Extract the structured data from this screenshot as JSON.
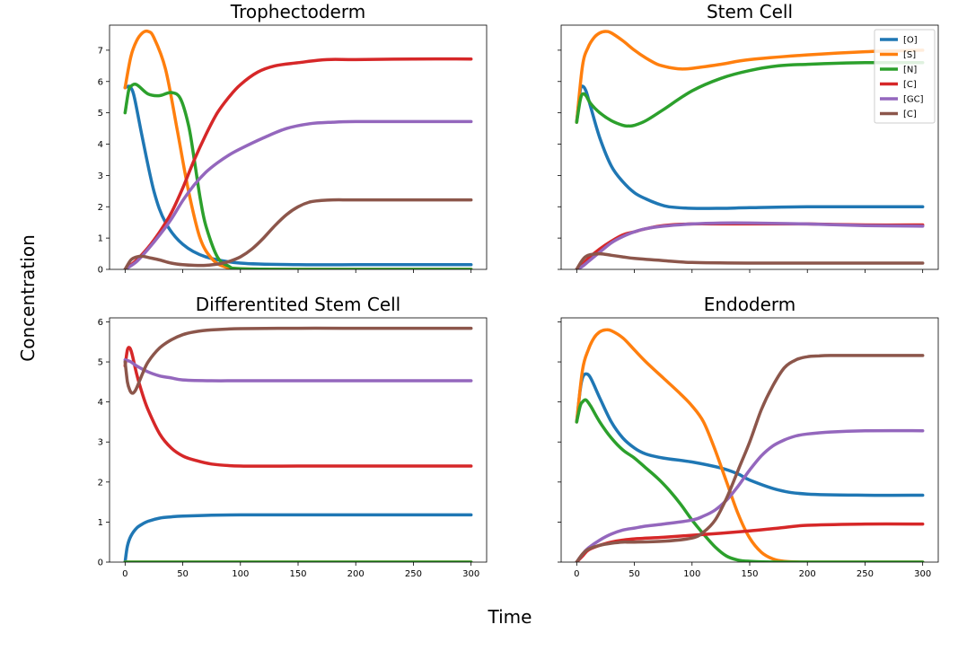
{
  "figure": {
    "xlabel": "Time",
    "ylabel": "Concentration"
  },
  "colors": [
    "#1f77b4",
    "#ff7f0e",
    "#2ca02c",
    "#d62728",
    "#9467bd",
    "#8c564b"
  ],
  "legend": {
    "location": "upper right of Stem Cell panel",
    "entries": [
      "[O]",
      "[S]",
      "[N]",
      "[C]",
      "[GC]",
      "[C]"
    ]
  },
  "chart_data": [
    {
      "type": "line",
      "title": "Trophectoderm",
      "xlim": [
        0,
        300
      ],
      "ylim": [
        0,
        7.8
      ],
      "xticks": [
        0,
        50,
        100,
        150,
        200,
        250,
        300
      ],
      "yticks": [
        0,
        1,
        2,
        3,
        4,
        5,
        6,
        7
      ],
      "grid": false,
      "series": [
        {
          "name": "[O]",
          "x": [
            0,
            3,
            5,
            8,
            15,
            25,
            35,
            50,
            70,
            100,
            150,
            200,
            300
          ],
          "y": [
            5.8,
            5.85,
            5.8,
            5.5,
            4.2,
            2.5,
            1.5,
            0.8,
            0.4,
            0.2,
            0.15,
            0.15,
            0.15
          ]
        },
        {
          "name": "[S]",
          "x": [
            0,
            5,
            10,
            15,
            20,
            25,
            35,
            45,
            55,
            65,
            75,
            85,
            100,
            150,
            300
          ],
          "y": [
            5.8,
            6.8,
            7.3,
            7.55,
            7.6,
            7.4,
            6.4,
            4.5,
            2.5,
            1.0,
            0.35,
            0.1,
            0.02,
            0,
            0
          ]
        },
        {
          "name": "[N]",
          "x": [
            0,
            3,
            5,
            10,
            20,
            30,
            40,
            48,
            55,
            60,
            65,
            70,
            80,
            90,
            100,
            150,
            300
          ],
          "y": [
            5.0,
            5.7,
            5.85,
            5.9,
            5.6,
            5.55,
            5.65,
            5.45,
            4.6,
            3.5,
            2.3,
            1.4,
            0.4,
            0.1,
            0.02,
            0,
            0
          ]
        },
        {
          "name": "[C]",
          "x": [
            0,
            10,
            20,
            30,
            40,
            50,
            60,
            70,
            80,
            90,
            100,
            115,
            130,
            150,
            175,
            200,
            250,
            300
          ],
          "y": [
            0,
            0.3,
            0.7,
            1.2,
            1.8,
            2.6,
            3.5,
            4.3,
            5.0,
            5.5,
            5.9,
            6.3,
            6.5,
            6.6,
            6.7,
            6.7,
            6.72,
            6.72
          ]
        },
        {
          "name": "[GC]",
          "x": [
            0,
            10,
            20,
            30,
            40,
            50,
            60,
            70,
            80,
            90,
            100,
            120,
            140,
            160,
            180,
            200,
            250,
            300
          ],
          "y": [
            0,
            0.25,
            0.65,
            1.1,
            1.6,
            2.2,
            2.7,
            3.1,
            3.4,
            3.65,
            3.85,
            4.2,
            4.5,
            4.65,
            4.7,
            4.72,
            4.72,
            4.72
          ]
        },
        {
          "name": "[C]",
          "x": [
            0,
            5,
            10,
            15,
            20,
            30,
            40,
            50,
            60,
            70,
            80,
            90,
            100,
            110,
            120,
            130,
            140,
            150,
            160,
            170,
            180,
            200,
            250,
            300
          ],
          "y": [
            0,
            0.3,
            0.4,
            0.42,
            0.38,
            0.3,
            0.2,
            0.15,
            0.13,
            0.13,
            0.17,
            0.25,
            0.4,
            0.65,
            1.0,
            1.4,
            1.75,
            2.0,
            2.15,
            2.2,
            2.22,
            2.22,
            2.22,
            2.22
          ]
        }
      ]
    },
    {
      "type": "line",
      "title": "Stem Cell",
      "xlim": [
        0,
        300
      ],
      "ylim": [
        0,
        7.8
      ],
      "xticks": [
        0,
        50,
        100,
        150,
        200,
        250,
        300
      ],
      "yticks": [
        0,
        1,
        2,
        3,
        4,
        5,
        6,
        7
      ],
      "grid": false,
      "series": [
        {
          "name": "[O]",
          "x": [
            0,
            3,
            5,
            8,
            12,
            20,
            30,
            40,
            50,
            60,
            70,
            80,
            100,
            125,
            150,
            200,
            250,
            300
          ],
          "y": [
            4.7,
            5.7,
            5.85,
            5.7,
            5.2,
            4.2,
            3.3,
            2.8,
            2.45,
            2.25,
            2.1,
            2.0,
            1.95,
            1.95,
            1.97,
            2.0,
            2.0,
            2.0
          ]
        },
        {
          "name": "[S]",
          "x": [
            0,
            5,
            10,
            15,
            20,
            25,
            30,
            40,
            50,
            60,
            70,
            80,
            90,
            100,
            125,
            150,
            200,
            250,
            300
          ],
          "y": [
            4.7,
            6.5,
            7.1,
            7.4,
            7.55,
            7.6,
            7.55,
            7.3,
            7.0,
            6.75,
            6.55,
            6.45,
            6.4,
            6.42,
            6.55,
            6.7,
            6.85,
            6.95,
            7.0
          ]
        },
        {
          "name": "[N]",
          "x": [
            0,
            3,
            5,
            8,
            12,
            20,
            30,
            40,
            45,
            50,
            60,
            75,
            100,
            125,
            150,
            175,
            200,
            250,
            300
          ],
          "y": [
            4.7,
            5.4,
            5.6,
            5.55,
            5.3,
            5.0,
            4.75,
            4.6,
            4.58,
            4.6,
            4.75,
            5.1,
            5.7,
            6.1,
            6.35,
            6.5,
            6.55,
            6.6,
            6.6
          ]
        },
        {
          "name": "[C]",
          "x": [
            0,
            5,
            10,
            20,
            30,
            40,
            50,
            60,
            75,
            100,
            125,
            150,
            200,
            250,
            300
          ],
          "y": [
            0,
            0.15,
            0.35,
            0.65,
            0.9,
            1.1,
            1.2,
            1.3,
            1.4,
            1.45,
            1.45,
            1.45,
            1.45,
            1.42,
            1.42
          ]
        },
        {
          "name": "[GC]",
          "x": [
            0,
            5,
            10,
            20,
            30,
            40,
            50,
            60,
            75,
            100,
            125,
            150,
            200,
            250,
            300
          ],
          "y": [
            0,
            0.1,
            0.25,
            0.55,
            0.85,
            1.05,
            1.2,
            1.3,
            1.38,
            1.45,
            1.48,
            1.48,
            1.45,
            1.4,
            1.38
          ]
        },
        {
          "name": "[C]",
          "x": [
            0,
            5,
            10,
            20,
            30,
            40,
            50,
            75,
            100,
            150,
            200,
            250,
            300
          ],
          "y": [
            0,
            0.3,
            0.45,
            0.5,
            0.45,
            0.4,
            0.35,
            0.28,
            0.22,
            0.2,
            0.2,
            0.2,
            0.2
          ]
        }
      ]
    },
    {
      "type": "line",
      "title": "Differentited Stem Cell",
      "xlim": [
        0,
        300
      ],
      "ylim": [
        0,
        6.1
      ],
      "xticks": [
        0,
        50,
        100,
        150,
        200,
        250,
        300
      ],
      "yticks": [
        0,
        1,
        2,
        3,
        4,
        5,
        6
      ],
      "grid": false,
      "series": [
        {
          "name": "[O]",
          "x": [
            0,
            2,
            5,
            10,
            15,
            20,
            30,
            40,
            50,
            75,
            100,
            150,
            200,
            300
          ],
          "y": [
            0,
            0.4,
            0.65,
            0.85,
            0.95,
            1.02,
            1.1,
            1.13,
            1.15,
            1.17,
            1.18,
            1.18,
            1.18,
            1.18
          ]
        },
        {
          "name": "[S]",
          "x": [
            0,
            300
          ],
          "y": [
            0,
            0
          ]
        },
        {
          "name": "[N]",
          "x": [
            0,
            300
          ],
          "y": [
            0,
            0
          ]
        },
        {
          "name": "[C]",
          "x": [
            0,
            2,
            4,
            6,
            10,
            15,
            20,
            30,
            40,
            50,
            60,
            75,
            100,
            150,
            200,
            300
          ],
          "y": [
            4.9,
            5.3,
            5.35,
            5.2,
            4.7,
            4.2,
            3.8,
            3.2,
            2.85,
            2.65,
            2.55,
            2.45,
            2.4,
            2.4,
            2.4,
            2.4
          ]
        },
        {
          "name": "[GC]",
          "x": [
            0,
            5,
            10,
            20,
            30,
            40,
            50,
            75,
            100,
            150,
            200,
            300
          ],
          "y": [
            5.05,
            5.0,
            4.9,
            4.75,
            4.65,
            4.6,
            4.55,
            4.53,
            4.53,
            4.53,
            4.53,
            4.53
          ]
        },
        {
          "name": "[C]",
          "x": [
            0,
            2,
            4,
            6,
            8,
            10,
            15,
            20,
            30,
            40,
            50,
            60,
            75,
            100,
            150,
            200,
            300
          ],
          "y": [
            5.0,
            4.5,
            4.3,
            4.22,
            4.25,
            4.35,
            4.7,
            5.0,
            5.35,
            5.55,
            5.68,
            5.75,
            5.8,
            5.83,
            5.84,
            5.84,
            5.84
          ]
        }
      ]
    },
    {
      "type": "line",
      "title": "Endoderm",
      "xlim": [
        0,
        300
      ],
      "ylim": [
        0,
        6.1
      ],
      "xticks": [
        0,
        50,
        100,
        150,
        200,
        250,
        300
      ],
      "yticks": [
        0,
        1,
        2,
        3,
        4,
        5,
        6
      ],
      "grid": false,
      "series": [
        {
          "name": "[O]",
          "x": [
            0,
            3,
            5,
            8,
            12,
            20,
            30,
            40,
            50,
            60,
            75,
            100,
            125,
            140,
            150,
            175,
            200,
            250,
            300
          ],
          "y": [
            3.5,
            4.3,
            4.6,
            4.7,
            4.6,
            4.1,
            3.5,
            3.1,
            2.85,
            2.7,
            2.6,
            2.5,
            2.35,
            2.2,
            2.05,
            1.8,
            1.7,
            1.67,
            1.67
          ]
        },
        {
          "name": "[S]",
          "x": [
            0,
            5,
            10,
            15,
            20,
            25,
            30,
            40,
            50,
            60,
            75,
            90,
            100,
            110,
            120,
            130,
            140,
            150,
            160,
            170,
            180,
            200,
            250,
            300
          ],
          "y": [
            3.5,
            4.8,
            5.3,
            5.6,
            5.75,
            5.8,
            5.78,
            5.6,
            5.3,
            5.0,
            4.6,
            4.2,
            3.9,
            3.5,
            2.8,
            2.0,
            1.2,
            0.6,
            0.25,
            0.08,
            0.02,
            0,
            0,
            0
          ]
        },
        {
          "name": "[N]",
          "x": [
            0,
            3,
            5,
            8,
            12,
            20,
            30,
            40,
            50,
            60,
            70,
            80,
            90,
            100,
            110,
            120,
            130,
            140,
            150,
            175,
            200,
            300
          ],
          "y": [
            3.5,
            3.9,
            4.0,
            4.05,
            3.9,
            3.5,
            3.1,
            2.8,
            2.6,
            2.35,
            2.1,
            1.8,
            1.45,
            1.05,
            0.7,
            0.38,
            0.15,
            0.05,
            0.02,
            0,
            0,
            0
          ]
        },
        {
          "name": "[C]",
          "x": [
            0,
            5,
            10,
            20,
            30,
            40,
            50,
            75,
            100,
            125,
            150,
            175,
            200,
            250,
            300
          ],
          "y": [
            0,
            0.15,
            0.3,
            0.42,
            0.5,
            0.55,
            0.58,
            0.62,
            0.67,
            0.72,
            0.78,
            0.85,
            0.92,
            0.95,
            0.95
          ]
        },
        {
          "name": "[GC]",
          "x": [
            0,
            5,
            10,
            20,
            30,
            40,
            50,
            60,
            75,
            100,
            110,
            120,
            130,
            140,
            150,
            160,
            170,
            180,
            190,
            200,
            220,
            250,
            300
          ],
          "y": [
            0,
            0.2,
            0.35,
            0.55,
            0.7,
            0.8,
            0.85,
            0.9,
            0.95,
            1.05,
            1.15,
            1.3,
            1.55,
            1.9,
            2.3,
            2.65,
            2.9,
            3.05,
            3.15,
            3.2,
            3.25,
            3.28,
            3.28
          ]
        },
        {
          "name": "[C]",
          "x": [
            0,
            5,
            10,
            20,
            30,
            40,
            50,
            75,
            100,
            110,
            120,
            130,
            140,
            150,
            160,
            170,
            180,
            190,
            200,
            210,
            220,
            250,
            300
          ],
          "y": [
            0,
            0.2,
            0.32,
            0.42,
            0.47,
            0.5,
            0.5,
            0.52,
            0.6,
            0.75,
            1.05,
            1.6,
            2.3,
            3.0,
            3.8,
            4.4,
            4.85,
            5.05,
            5.13,
            5.15,
            5.16,
            5.16,
            5.16
          ]
        }
      ]
    }
  ]
}
